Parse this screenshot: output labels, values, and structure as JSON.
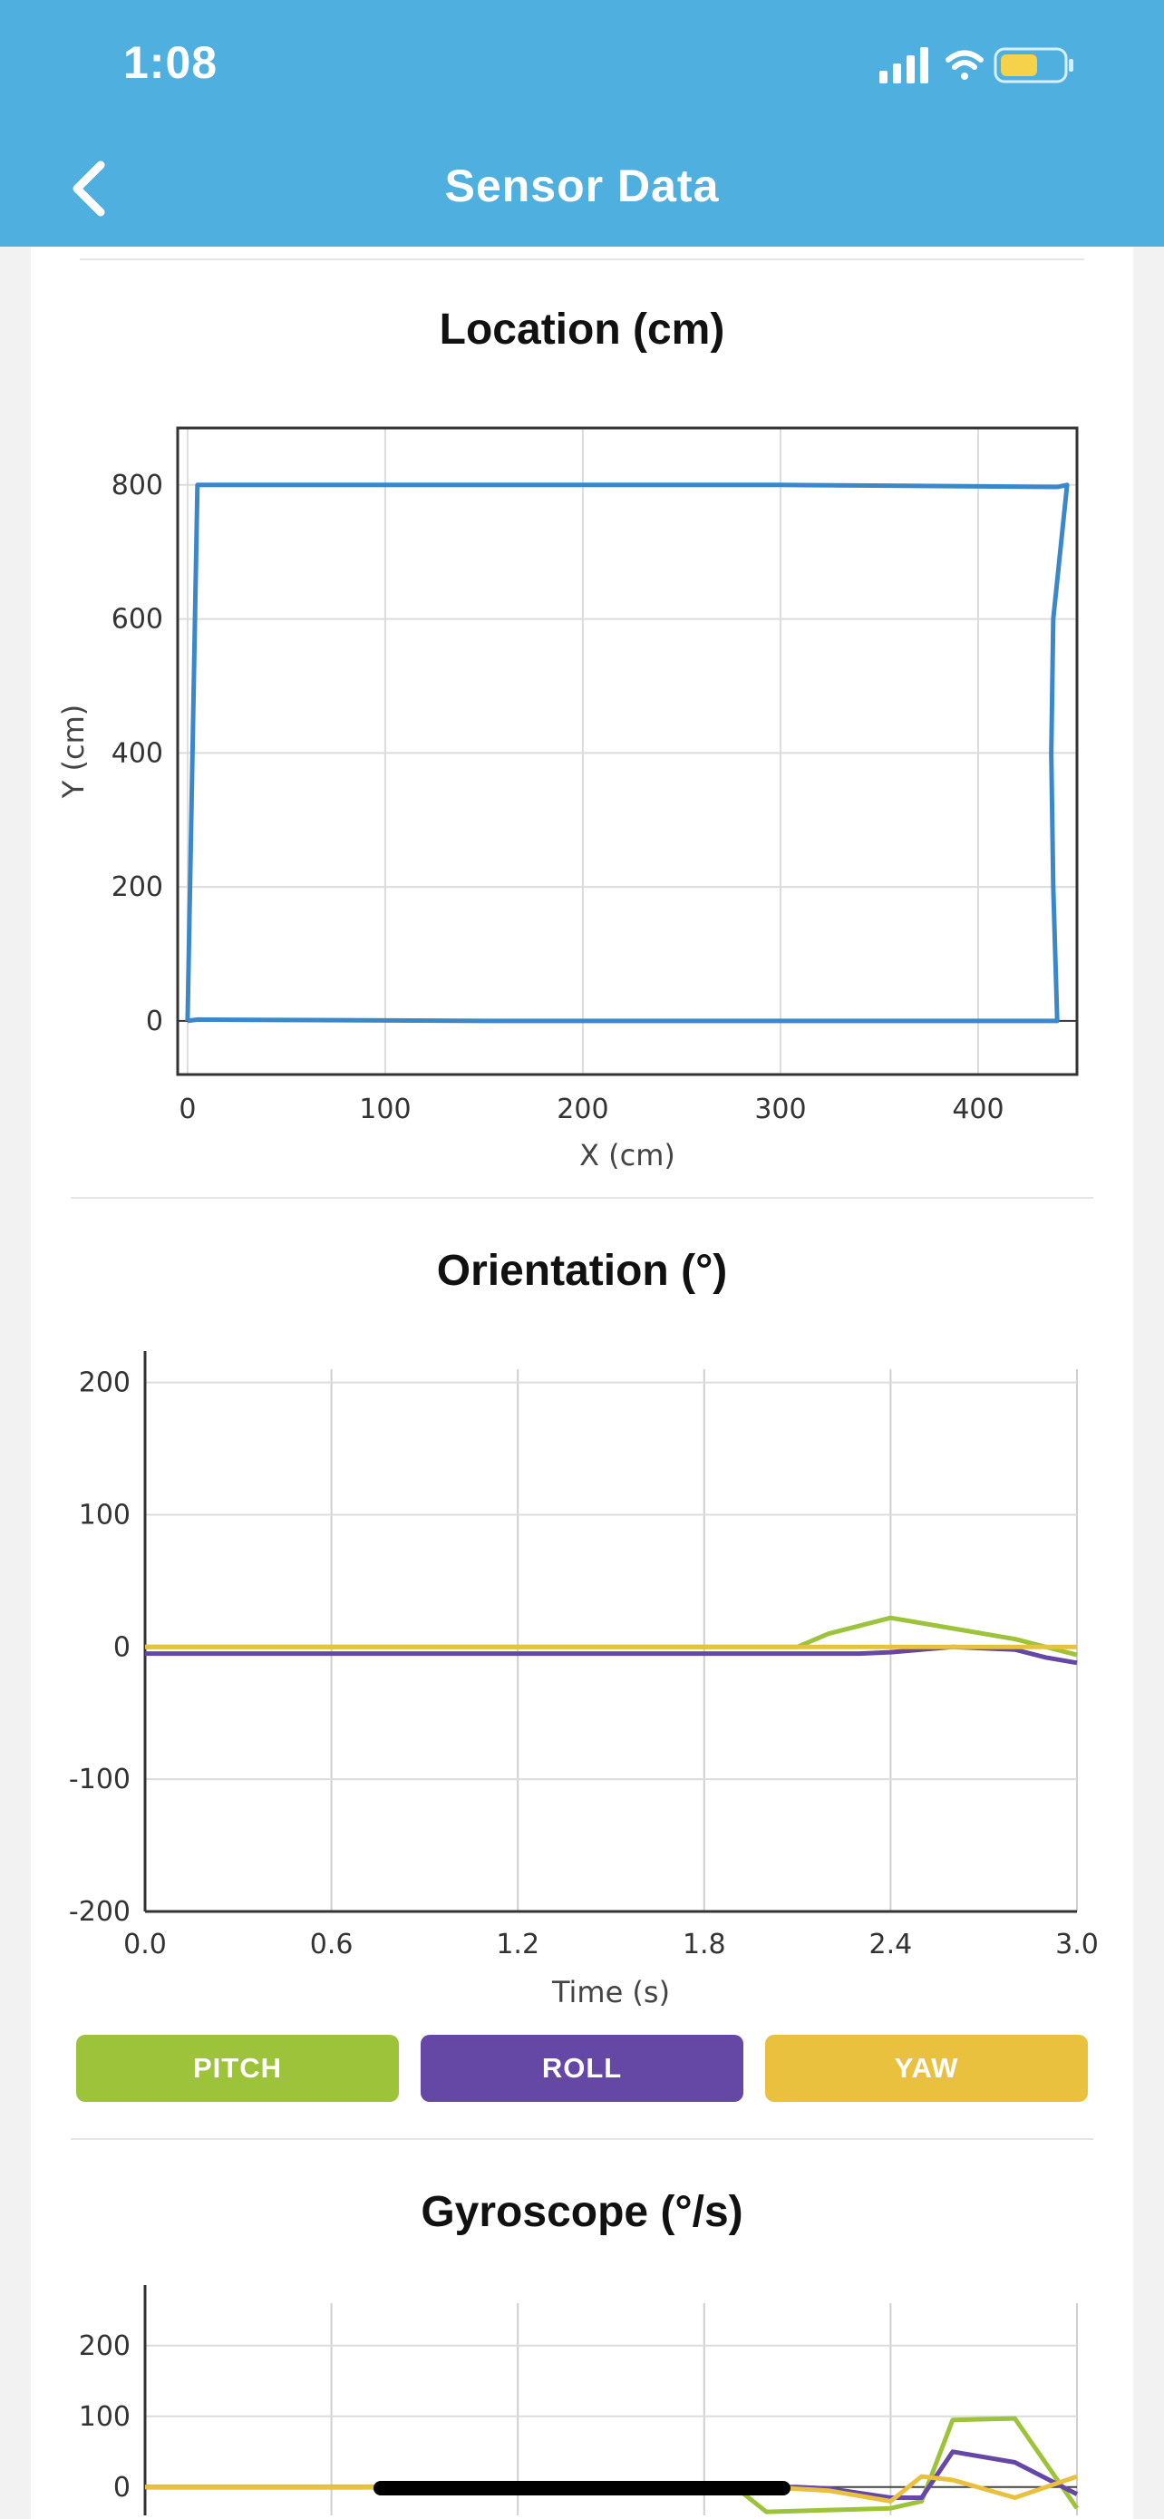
{
  "status_bar": {
    "time": "1:08"
  },
  "nav": {
    "title": "Sensor Data",
    "back_icon": "chevron-left-icon"
  },
  "colors": {
    "header": "#4fb0e0",
    "pitch": "#9dc33b",
    "roll": "#6547a5",
    "yaw": "#e9c13f",
    "location_line": "#3a88c9"
  },
  "location_chart": {
    "title": "Location (cm)",
    "chart_data": {
      "type": "line",
      "xlabel": "X (cm)",
      "ylabel": "Y (cm)",
      "xlim": [
        -5,
        450
      ],
      "ylim": [
        -80,
        885
      ],
      "xticks": [
        0,
        100,
        200,
        300,
        400
      ],
      "yticks": [
        0,
        200,
        400,
        600,
        800
      ],
      "grid": true,
      "series": [
        {
          "x": [
            0,
            5,
            150,
            300,
            440,
            445,
            438,
            437,
            438,
            440,
            150,
            5,
            0
          ],
          "y": [
            0,
            800,
            800,
            800,
            797,
            800,
            600,
            400,
            200,
            0,
            0,
            2,
            0
          ]
        }
      ]
    }
  },
  "orientation_chart": {
    "title": "Orientation (°)",
    "chart_data": {
      "type": "line",
      "xlabel": "Time (s)",
      "ylabel": "",
      "xlim": [
        0,
        3.0
      ],
      "ylim": [
        -200,
        210
      ],
      "xticks": [
        "0.0",
        "0.6",
        "1.2",
        "1.8",
        "2.4",
        "3.0"
      ],
      "yticks": [
        200,
        100,
        0,
        -100,
        -200
      ],
      "grid": true,
      "series": [
        {
          "name": "PITCH",
          "x": [
            0,
            2.1,
            2.2,
            2.4,
            2.6,
            2.8,
            3.0
          ],
          "y": [
            0,
            0,
            10,
            22,
            14,
            6,
            -6
          ]
        },
        {
          "name": "ROLL",
          "x": [
            0,
            2.3,
            2.4,
            2.6,
            2.8,
            2.9,
            3.0
          ],
          "y": [
            -5,
            -5,
            -4,
            0,
            -2,
            -8,
            -12
          ]
        },
        {
          "name": "YAW",
          "x": [
            0,
            2.4,
            2.6,
            2.8,
            3.0
          ],
          "y": [
            0,
            0,
            0,
            0,
            0
          ]
        }
      ]
    }
  },
  "legend": {
    "pitch": "PITCH",
    "roll": "ROLL",
    "yaw": "YAW"
  },
  "gyroscope_chart": {
    "title": "Gyroscope (°/s)",
    "chart_data": {
      "type": "line",
      "xlabel": "",
      "ylabel": "",
      "xlim": [
        0,
        3.0
      ],
      "ylim": [
        -40,
        260
      ],
      "xticks": [],
      "yticks": [
        200,
        100,
        0
      ],
      "grid": true,
      "series": [
        {
          "name": "PITCH",
          "x": [
            0,
            1.9,
            2.0,
            2.4,
            2.5,
            2.6,
            2.8,
            3.0
          ],
          "y": [
            0,
            0,
            -35,
            -30,
            -20,
            95,
            97,
            -30
          ]
        },
        {
          "name": "ROLL",
          "x": [
            0,
            2.1,
            2.2,
            2.4,
            2.5,
            2.6,
            2.8,
            3.0
          ],
          "y": [
            0,
            0,
            -2,
            -15,
            -15,
            50,
            35,
            -10
          ]
        },
        {
          "name": "YAW",
          "x": [
            0,
            1.9,
            2.0,
            2.2,
            2.4,
            2.5,
            2.6,
            2.8,
            3.0
          ],
          "y": [
            0,
            0,
            0,
            -5,
            -20,
            15,
            10,
            -15,
            15
          ]
        }
      ]
    }
  }
}
